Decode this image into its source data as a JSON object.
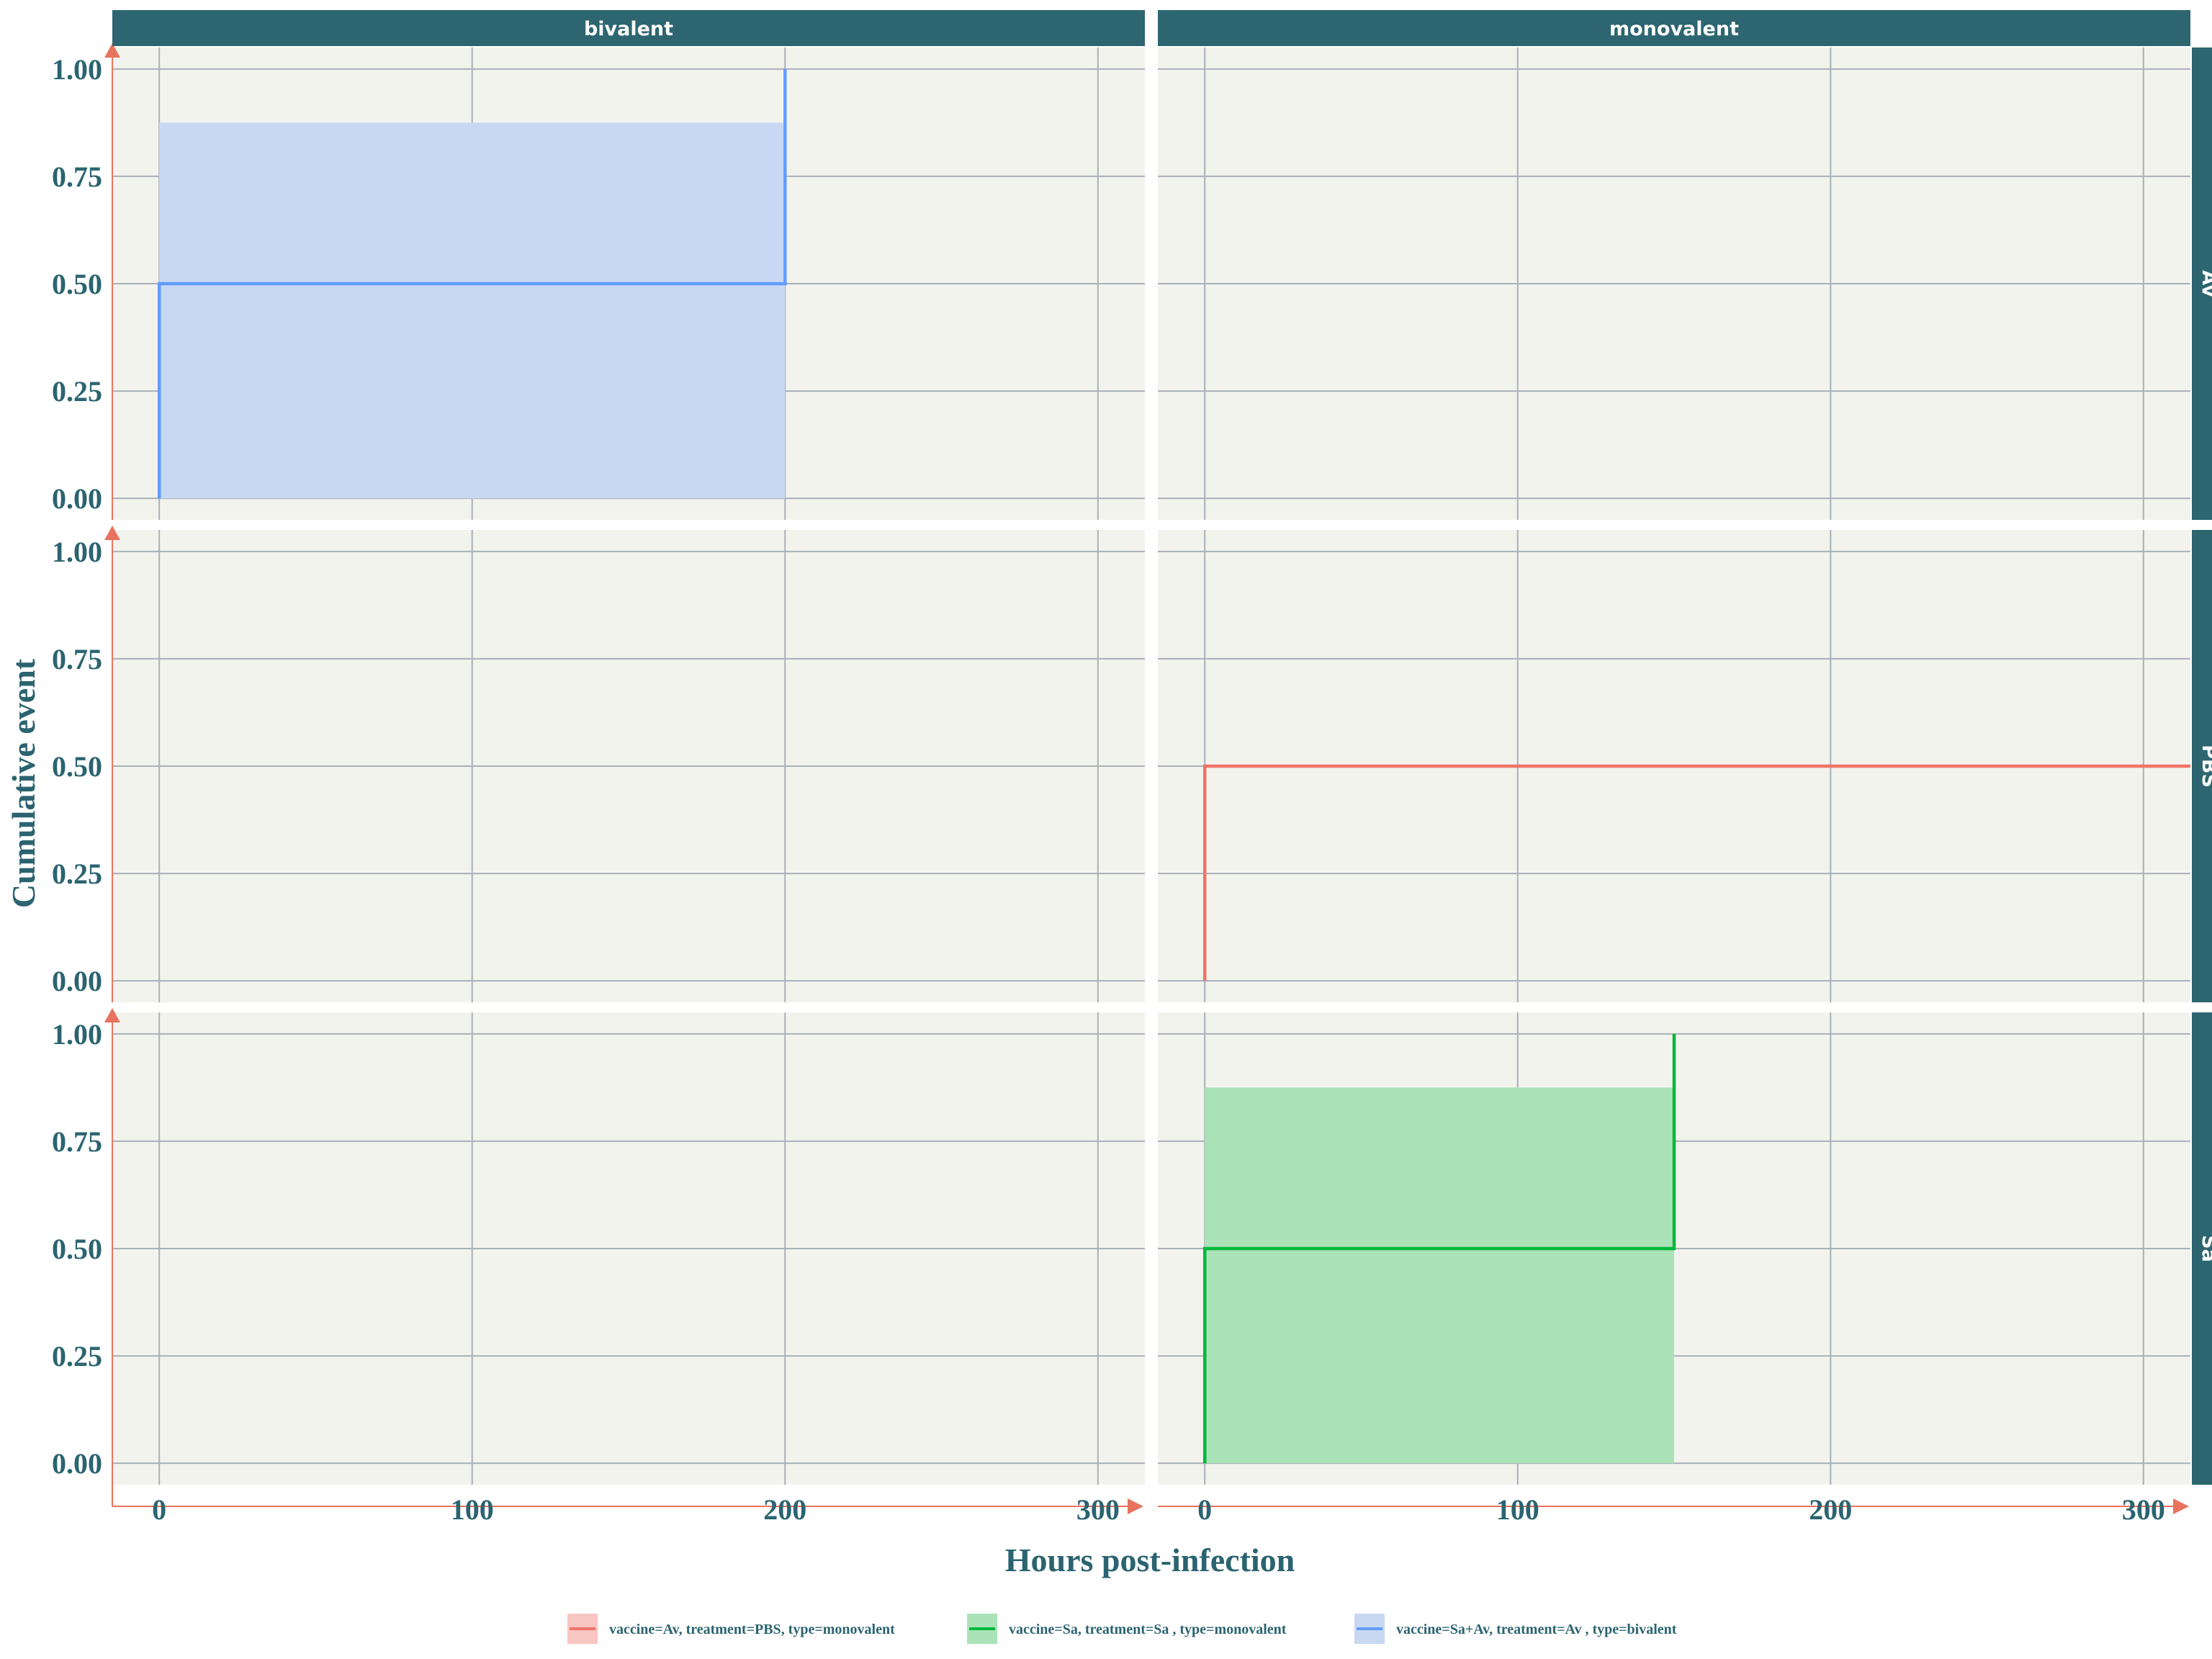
{
  "chart_data": {
    "type": "line",
    "subtype": "kaplan-meier cumulative event step plot, faceted",
    "xlabel": "Hours post-infection",
    "ylabel": "Cumulative event",
    "xlim": [
      -15,
      315
    ],
    "ylim": [
      -0.05,
      1.05
    ],
    "x_ticks": [
      0,
      100,
      200,
      300
    ],
    "y_ticks": [
      "0.00",
      "0.25",
      "0.50",
      "0.75",
      "1.00"
    ],
    "grid": true,
    "legend_position": "bottom",
    "facet_columns": [
      "bivalent",
      "monovalent"
    ],
    "facet_rows": [
      "Av",
      "PBS",
      "Sa"
    ],
    "colors": {
      "panel_bg": "#f3f3ee",
      "grid": "#a8b0b8",
      "strip_bg": "#2d6670",
      "axis_line": "#e8735e",
      "text": "#2b6470"
    },
    "series": [
      {
        "name": "vaccine=Av, treatment=PBS, type=monovalent",
        "color": "#f07367",
        "fill": "#f8c6c2",
        "facet_col": "monovalent",
        "facet_row": "PBS",
        "step_x": [
          0,
          0,
          315
        ],
        "step_y": [
          0,
          0.5,
          0.5
        ],
        "ci": null
      },
      {
        "name": "vaccine=Sa, treatment=Sa , type=monovalent",
        "color": "#00b83a",
        "fill": "#abe3b8",
        "facet_col": "monovalent",
        "facet_row": "Sa",
        "step_x": [
          0,
          0,
          150,
          150
        ],
        "step_y": [
          0,
          0.5,
          0.5,
          1.0
        ],
        "ci": {
          "x0": 0,
          "x1": 150,
          "lower": 0,
          "upper": 0.875
        }
      },
      {
        "name": "vaccine=Sa+Av, treatment=Av , type=bivalent",
        "color": "#619cff",
        "fill": "#c9d8f2",
        "facet_col": "bivalent",
        "facet_row": "Av",
        "step_x": [
          0,
          0,
          200,
          200
        ],
        "step_y": [
          0,
          0.5,
          0.5,
          1.0
        ],
        "ci": {
          "x0": 0,
          "x1": 200,
          "lower": 0,
          "upper": 0.875
        }
      }
    ]
  }
}
